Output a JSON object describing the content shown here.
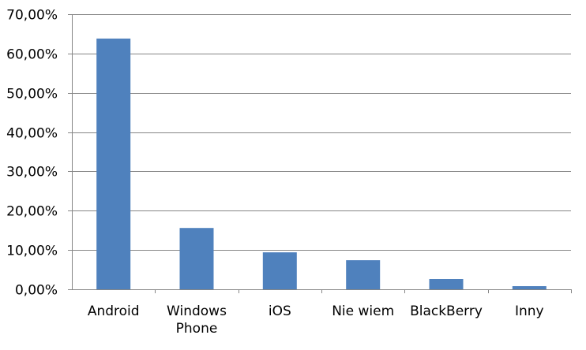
{
  "colors": {
    "bar": "#4f81bd",
    "grid": "#868686",
    "axis": "#868686",
    "background": "#ffffff"
  },
  "chart_data": {
    "type": "bar",
    "title": "",
    "xlabel": "",
    "ylabel": "",
    "categories": [
      "Android",
      "Windows Phone",
      "iOS",
      "Nie wiem",
      "BlackBerry",
      "Inny"
    ],
    "category_label_lines": [
      [
        "Android"
      ],
      [
        "Windows",
        "Phone"
      ],
      [
        "iOS"
      ],
      [
        "Nie wiem"
      ],
      [
        "BlackBerry"
      ],
      [
        "Inny"
      ]
    ],
    "values": [
      63.8,
      15.6,
      9.4,
      7.4,
      2.6,
      0.8
    ],
    "value_unit": "%",
    "ylim": [
      0,
      70
    ],
    "yticks": [
      0,
      10,
      20,
      30,
      40,
      50,
      60,
      70
    ],
    "ytick_labels": [
      "0,00%",
      "10,00%",
      "20,00%",
      "30,00%",
      "40,00%",
      "50,00%",
      "60,00%",
      "70,00%"
    ],
    "grid": true,
    "legend": "none"
  }
}
